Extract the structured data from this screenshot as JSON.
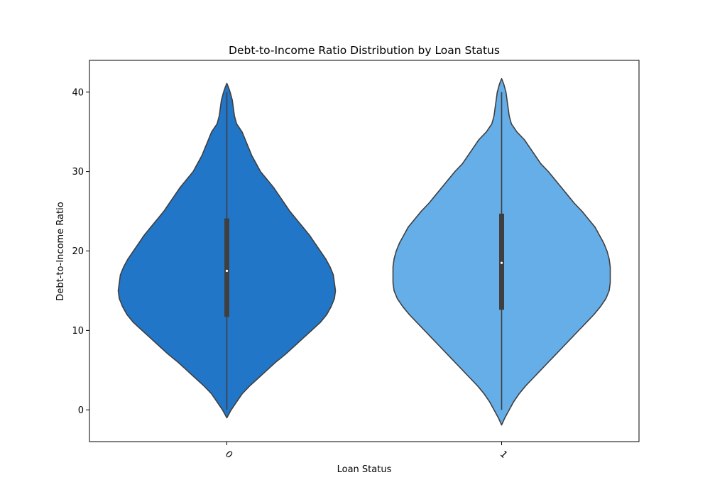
{
  "chart_data": {
    "type": "violin",
    "title": "Debt-to-Income Ratio Distribution by Loan Status",
    "xlabel": "Loan Status",
    "ylabel": "Debt-to-Income Ratio",
    "categories": [
      "0",
      "1"
    ],
    "ylim": [
      -4,
      44
    ],
    "yticks": [
      0,
      10,
      20,
      30,
      40
    ],
    "x_tick_rotation": 45,
    "grid": false,
    "legend": "none",
    "colors": [
      "#2176c7",
      "#66aee8"
    ],
    "outline_color": "#3f3f3f",
    "violins": [
      {
        "category": "0",
        "color": "#2176c7",
        "box": {
          "whisker_low": 0,
          "q1": 11.7,
          "median": 17.5,
          "q3": 24.1,
          "whisker_high": 40
        },
        "density": [
          [
            -1.0,
            0.0
          ],
          [
            0.0,
            0.04
          ],
          [
            1.0,
            0.09
          ],
          [
            2.0,
            0.14
          ],
          [
            3.0,
            0.21
          ],
          [
            4.0,
            0.29
          ],
          [
            5.0,
            0.37
          ],
          [
            6.0,
            0.45
          ],
          [
            7.0,
            0.54
          ],
          [
            8.0,
            0.62
          ],
          [
            9.0,
            0.7
          ],
          [
            10.0,
            0.78
          ],
          [
            11.0,
            0.86
          ],
          [
            12.0,
            0.92
          ],
          [
            13.0,
            0.96
          ],
          [
            14.0,
            0.99
          ],
          [
            15.0,
            1.0
          ],
          [
            16.0,
            0.99
          ],
          [
            17.0,
            0.98
          ],
          [
            18.0,
            0.95
          ],
          [
            19.0,
            0.91
          ],
          [
            20.0,
            0.86
          ],
          [
            21.0,
            0.81
          ],
          [
            22.0,
            0.76
          ],
          [
            23.0,
            0.7
          ],
          [
            24.0,
            0.64
          ],
          [
            25.0,
            0.58
          ],
          [
            26.0,
            0.53
          ],
          [
            27.0,
            0.48
          ],
          [
            28.0,
            0.43
          ],
          [
            29.0,
            0.37
          ],
          [
            30.0,
            0.31
          ],
          [
            31.0,
            0.27
          ],
          [
            32.0,
            0.23
          ],
          [
            33.0,
            0.2
          ],
          [
            34.0,
            0.17
          ],
          [
            35.0,
            0.14
          ],
          [
            36.0,
            0.09
          ],
          [
            37.0,
            0.07
          ],
          [
            38.0,
            0.06
          ],
          [
            39.0,
            0.05
          ],
          [
            40.0,
            0.03
          ],
          [
            40.6,
            0.015
          ],
          [
            41.1,
            0.0
          ]
        ]
      },
      {
        "category": "1",
        "color": "#66aee8",
        "box": {
          "whisker_low": 0,
          "q1": 12.6,
          "median": 18.5,
          "q3": 24.7,
          "whisker_high": 40
        },
        "density": [
          [
            -1.9,
            0.0
          ],
          [
            -1.0,
            0.03
          ],
          [
            0.0,
            0.07
          ],
          [
            1.0,
            0.11
          ],
          [
            2.0,
            0.16
          ],
          [
            3.0,
            0.22
          ],
          [
            4.0,
            0.29
          ],
          [
            5.0,
            0.36
          ],
          [
            6.0,
            0.43
          ],
          [
            7.0,
            0.5
          ],
          [
            8.0,
            0.57
          ],
          [
            9.0,
            0.64
          ],
          [
            10.0,
            0.71
          ],
          [
            11.0,
            0.78
          ],
          [
            12.0,
            0.85
          ],
          [
            13.0,
            0.91
          ],
          [
            14.0,
            0.96
          ],
          [
            15.0,
            0.99
          ],
          [
            16.0,
            1.0
          ],
          [
            17.0,
            1.0
          ],
          [
            18.0,
            1.0
          ],
          [
            19.0,
            0.99
          ],
          [
            20.0,
            0.97
          ],
          [
            21.0,
            0.94
          ],
          [
            22.0,
            0.9
          ],
          [
            23.0,
            0.86
          ],
          [
            24.0,
            0.8
          ],
          [
            25.0,
            0.74
          ],
          [
            26.0,
            0.67
          ],
          [
            27.0,
            0.61
          ],
          [
            28.0,
            0.55
          ],
          [
            29.0,
            0.49
          ],
          [
            30.0,
            0.43
          ],
          [
            31.0,
            0.36
          ],
          [
            32.0,
            0.31
          ],
          [
            33.0,
            0.26
          ],
          [
            34.0,
            0.21
          ],
          [
            35.0,
            0.14
          ],
          [
            36.0,
            0.09
          ],
          [
            37.0,
            0.07
          ],
          [
            38.0,
            0.06
          ],
          [
            39.0,
            0.05
          ],
          [
            40.0,
            0.04
          ],
          [
            41.0,
            0.02
          ],
          [
            41.7,
            0.0
          ]
        ]
      }
    ]
  }
}
